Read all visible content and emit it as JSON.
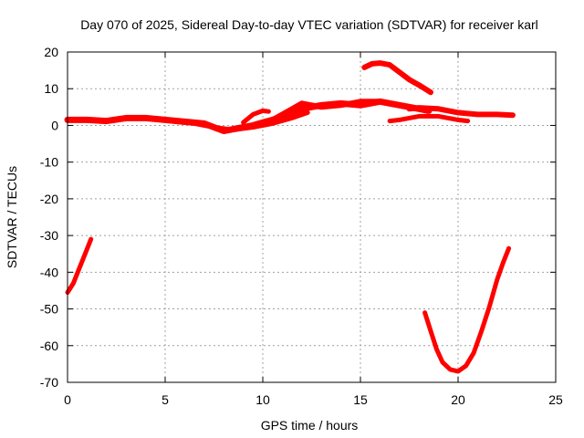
{
  "chart_data": {
    "type": "scatter",
    "title": "Day 070 of 2025, Sidereal Day-to-day VTEC variation (SDTVAR) for receiver karl",
    "xlabel": "GPS time / hours",
    "ylabel": "SDTVAR / TECUs",
    "xlim": [
      0,
      25
    ],
    "ylim": [
      -70,
      20
    ],
    "xticks": [
      0,
      5,
      10,
      15,
      20,
      25
    ],
    "yticks": [
      -70,
      -60,
      -50,
      -40,
      -30,
      -20,
      -10,
      0,
      10,
      20
    ],
    "grid": true,
    "legend": "none",
    "color": "#ff0000",
    "series": [
      {
        "name": "arc-early-negative",
        "thickness": 5,
        "x": [
          0,
          0.3,
          0.6,
          0.9,
          1.2
        ],
        "y": [
          -45.5,
          -43,
          -39,
          -35,
          -31
        ]
      },
      {
        "name": "arc-baseline",
        "thickness": 7,
        "x": [
          0,
          1,
          2,
          3,
          4,
          5,
          6,
          7,
          7.5,
          8,
          8.5,
          9,
          9.5,
          10,
          10.5,
          11,
          11.5,
          12,
          13,
          14,
          15,
          16,
          17,
          18,
          18.5
        ],
        "y": [
          1.5,
          1.5,
          1.2,
          2,
          2,
          1.5,
          1,
          0.5,
          -0.5,
          -1.5,
          -1,
          -0.5,
          0,
          0.8,
          1.5,
          2.5,
          3.5,
          4.5,
          5.5,
          6,
          5.5,
          6.5,
          5.5,
          4.5,
          4
        ]
      },
      {
        "name": "arc-morning-overlap",
        "thickness": 5,
        "x": [
          5.5,
          6.5,
          7.5,
          8.5,
          9.5,
          10.5,
          11.5,
          12.3
        ],
        "y": [
          1,
          0.5,
          -0.5,
          -1.2,
          -0.5,
          0.5,
          2,
          3.5
        ]
      },
      {
        "name": "arc-short-hump",
        "thickness": 5,
        "x": [
          9,
          9.5,
          10,
          10.3
        ],
        "y": [
          0.8,
          3,
          4,
          3.8
        ]
      },
      {
        "name": "arc-midday",
        "thickness": 6,
        "x": [
          10.5,
          11,
          11.5,
          12,
          12.5,
          13,
          14,
          15,
          16,
          17
        ],
        "y": [
          1.5,
          3,
          4.5,
          6,
          5.5,
          5,
          5.5,
          6.5,
          6.5,
          5.5
        ]
      },
      {
        "name": "arc-peak",
        "thickness": 6,
        "x": [
          15.2,
          15.6,
          16,
          16.5,
          17,
          17.5,
          18,
          18.6
        ],
        "y": [
          15.8,
          16.8,
          17,
          16.5,
          14.5,
          12.5,
          11,
          9
        ]
      },
      {
        "name": "arc-late-low",
        "thickness": 5,
        "x": [
          16.5,
          17,
          17.5,
          18,
          18.5,
          19,
          19.5,
          20,
          20.5
        ],
        "y": [
          1.2,
          1.5,
          2,
          2.5,
          2.5,
          2.5,
          2,
          1.5,
          1.2
        ]
      },
      {
        "name": "arc-late-high",
        "thickness": 6,
        "x": [
          17.5,
          18,
          19,
          20,
          21,
          22,
          22.8
        ],
        "y": [
          4.5,
          4.8,
          4.5,
          3.5,
          3,
          3,
          2.8
        ]
      },
      {
        "name": "arc-valley",
        "thickness": 5,
        "x": [
          18.3,
          18.6,
          18.9,
          19.2,
          19.6,
          20,
          20.4,
          20.8,
          21.2,
          21.6,
          22,
          22.3,
          22.6
        ],
        "y": [
          -51,
          -56,
          -61,
          -64.5,
          -66.5,
          -67,
          -65.5,
          -62,
          -56,
          -49.5,
          -42,
          -37.5,
          -33.5
        ]
      }
    ]
  }
}
